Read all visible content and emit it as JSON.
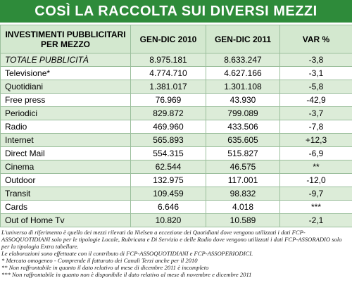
{
  "header": {
    "title": "COSÌ LA RACCOLTA SUI DIVERSI MEZZI"
  },
  "table": {
    "columns": [
      "INVESTIMENTI PUBBLICITARI PER MEZZO",
      "GEN-DIC 2010",
      "GEN-DIC 2011",
      "VAR %"
    ],
    "rows": [
      [
        "TOTALE PUBBLICITÀ",
        "8.975.181",
        "8.633.247",
        "-3,8"
      ],
      [
        "Televisione*",
        "4.774.710",
        "4.627.166",
        "-3,1"
      ],
      [
        "Quotidiani",
        "1.381.017",
        "1.301.108",
        "-5,8"
      ],
      [
        "Free press",
        "76.969",
        "43.930",
        "-42,9"
      ],
      [
        "Periodici",
        "829.872",
        "799.089",
        "-3,7"
      ],
      [
        "Radio",
        "469.960",
        "433.506",
        "-7,8"
      ],
      [
        "Internet",
        "565.893",
        "635.605",
        "+12,3"
      ],
      [
        "Direct Mail",
        "554.315",
        "515.827",
        "-6,9"
      ],
      [
        "Cinema",
        "62.544",
        "46.575",
        "**"
      ],
      [
        "Outdoor",
        "132.975",
        "117.001",
        "-12,0"
      ],
      [
        "Transit",
        "109.459",
        "98.832",
        "-9,7"
      ],
      [
        "Cards",
        "6.646",
        "4.018",
        "***"
      ],
      [
        "Out of Home Tv",
        "10.820",
        "10.589",
        "-2,1"
      ]
    ]
  },
  "notes": [
    "L'universo di riferimento è quello dei mezzi rilevati da Nielsen a eccezione dei Quotidiani dove vengono utilizzati i dati FCP-ASSOQUOTIDIANI solo per le tipologie Locale, Rubricata e Di Servizio e delle Radio dove vengono utilizzati i dati FCP-ASSORADIO solo per la tipologia Extra tabellare.",
    "Le elaborazioni sono effettuate con il contributo di FCP-ASSOQUOTIDIANI e FCP-ASSOPERIODICI.",
    "* Mercato omogeneo - Comprende il fatturato dei Canali Terzi anche per il 2010",
    "** Non raffrontabile in quanto il dato relativo al mese di dicembre 2011 è incompleto",
    "*** Non raffrontabile in quanto non è disponibile il dato relativo al mese di novembre e dicembre 2011"
  ]
}
